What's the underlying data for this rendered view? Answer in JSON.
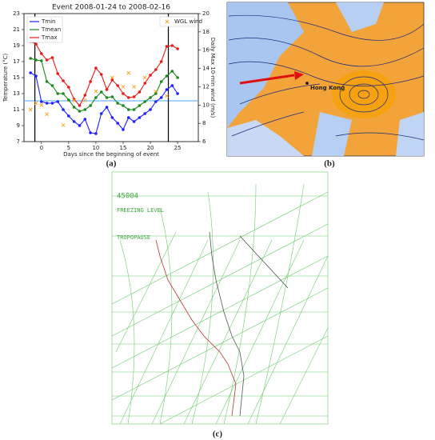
{
  "chart_data": {
    "type": "line",
    "title": "Event 2008-01-24 to 2008-02-16",
    "xlabel": "Days since the beginning of event",
    "ylabel": "Temperature (°C)",
    "y2label": "Daily Max 10-min wind (m/s)",
    "caption": "(a)",
    "x": [
      -2,
      -1,
      0,
      1,
      2,
      3,
      4,
      5,
      6,
      7,
      8,
      9,
      10,
      11,
      12,
      13,
      14,
      15,
      16,
      17,
      18,
      19,
      20,
      21,
      22,
      23,
      24,
      25
    ],
    "series": [
      {
        "name": "Tmin",
        "color": "#1f1fff",
        "values": [
          15.6,
          15.2,
          12.0,
          11.8,
          11.8,
          12.0,
          11.0,
          10.2,
          9.5,
          9.0,
          9.8,
          8.1,
          8.0,
          10.5,
          11.3,
          10.0,
          9.3,
          8.5,
          10.0,
          9.5,
          10.0,
          10.5,
          11.0,
          12.0,
          12.5,
          13.5,
          14.0,
          13.0
        ]
      },
      {
        "name": "Tmean",
        "color": "#1a8a1a",
        "values": [
          17.4,
          17.2,
          17.1,
          14.5,
          14.0,
          13.0,
          13.0,
          12.2,
          11.3,
          10.8,
          11.0,
          11.5,
          12.5,
          13.2,
          12.5,
          12.6,
          11.8,
          11.5,
          11.0,
          11.0,
          11.5,
          12.0,
          12.5,
          13.0,
          14.5,
          15.2,
          15.8,
          15.0
        ]
      },
      {
        "name": "Tmax",
        "color": "#e81a1a",
        "values": [
          19.5,
          19.2,
          18.0,
          17.2,
          17.5,
          15.5,
          14.6,
          13.8,
          12.3,
          11.5,
          12.8,
          14.5,
          16.2,
          15.4,
          13.5,
          14.7,
          14.0,
          13.0,
          12.5,
          12.6,
          13.2,
          14.3,
          15.3,
          16.0,
          17.0,
          18.9,
          19.0,
          18.6
        ]
      },
      {
        "name": "WGL wind",
        "color": "#f5a623",
        "type": "scatter",
        "axis": "y2",
        "x": [
          -2,
          -1,
          0,
          1,
          4,
          6,
          8,
          10,
          13,
          15,
          16,
          17,
          19,
          21,
          23,
          24,
          25
        ],
        "values": [
          9.5,
          10.2,
          10.0,
          9.0,
          7.8,
          10.5,
          10.5,
          11.5,
          13.0,
          12.0,
          13.5,
          12.0,
          13.0,
          11.5,
          11.0,
          19.5,
          19.0
        ]
      }
    ],
    "xlim": [
      -3.2,
      28.8
    ],
    "xticks": [
      0,
      5,
      10,
      15,
      20,
      25
    ],
    "ylim": [
      7,
      23
    ],
    "yticks": [
      7,
      9,
      11,
      13,
      15,
      17,
      19,
      21,
      23
    ],
    "y2lim": [
      6,
      20
    ],
    "y2ticks": [
      6,
      8,
      10,
      12,
      14,
      16,
      18,
      20
    ],
    "hline": 12.1,
    "hline_color": "#4da6ff",
    "vlines": [
      -1.2,
      23.3
    ],
    "legend": "upper left",
    "legend2": "upper right"
  },
  "map": {
    "label": "Hong Kong",
    "caption": "(b)"
  },
  "skewt": {
    "station": "45004",
    "freezing": "FREEZING LEVEL",
    "tropopause": "TROPOPAUSE",
    "caption": "(c)"
  }
}
